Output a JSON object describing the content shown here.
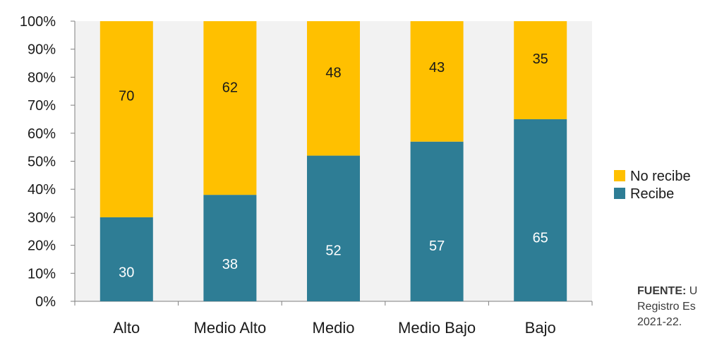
{
  "chart_data": {
    "type": "bar",
    "stacked": true,
    "normalized": true,
    "categories": [
      "Alto",
      "Medio Alto",
      "Medio",
      "Medio Bajo",
      "Bajo"
    ],
    "series": [
      {
        "name": "Recibe",
        "values": [
          30,
          38,
          52,
          57,
          65
        ],
        "color": "#2e7d95",
        "label_color": "#ffffff"
      },
      {
        "name": "No recibe",
        "values": [
          70,
          62,
          48,
          43,
          35
        ],
        "color": "#ffc000",
        "label_color": "#1a1a1a"
      }
    ],
    "yticks": [
      "0%",
      "10%",
      "20%",
      "30%",
      "40%",
      "50%",
      "60%",
      "70%",
      "80%",
      "90%",
      "100%"
    ],
    "ylim": [
      0,
      100
    ],
    "grid": false,
    "legend": {
      "position": "right",
      "order": [
        "No recibe",
        "Recibe"
      ]
    }
  },
  "source": {
    "label": "FUENTE:",
    "lines": [
      "U",
      "Registro Es",
      "2021-22."
    ]
  }
}
